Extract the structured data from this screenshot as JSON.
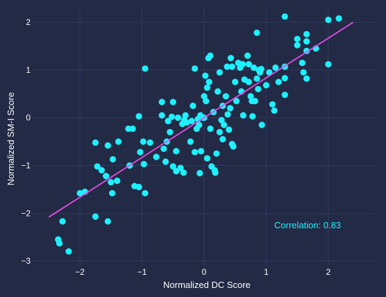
{
  "colors": {
    "background": "#222a45",
    "grid": "#34406a",
    "points": "#1ef0ff",
    "trend_line": "#e84be8",
    "text": "#ffffff",
    "annotation": "#1ef0ff"
  },
  "chart_data": {
    "type": "scatter",
    "title": "",
    "xlabel": "Normalized DC Score",
    "ylabel": "Normalized SM-I Score",
    "xlim": [
      -2.75,
      2.75
    ],
    "ylim": [
      -3.1,
      2.35
    ],
    "xticks": [
      -2,
      -1,
      0,
      1,
      2
    ],
    "yticks": [
      -3,
      -2,
      -1,
      0,
      1,
      2
    ],
    "xtick_labels": [
      "−2",
      "−1",
      "0",
      "1",
      "2"
    ],
    "ytick_labels": [
      "−3",
      "−2",
      "−1",
      "0",
      "1",
      "2"
    ],
    "grid": true,
    "annotation": "Correlation: 0.83",
    "trend_line": {
      "x": [
        -2.5,
        2.4
      ],
      "y": [
        -2.08,
        2.0
      ]
    },
    "points": [
      [
        -2.35,
        -2.55
      ],
      [
        -2.33,
        -2.63
      ],
      [
        -2.28,
        -2.17
      ],
      [
        -2.18,
        -2.8
      ],
      [
        -2.0,
        -1.58
      ],
      [
        -1.92,
        -1.55
      ],
      [
        -1.75,
        -2.07
      ],
      [
        -1.75,
        -0.52
      ],
      [
        -1.72,
        -1.02
      ],
      [
        -1.65,
        -1.1
      ],
      [
        -1.58,
        -1.22
      ],
      [
        -1.55,
        -0.58
      ],
      [
        -1.55,
        -2.17
      ],
      [
        -1.5,
        -1.35
      ],
      [
        -1.48,
        -1.58
      ],
      [
        -1.47,
        -0.87
      ],
      [
        -1.4,
        -1.32
      ],
      [
        -1.38,
        -0.5
      ],
      [
        -1.22,
        -0.23
      ],
      [
        -1.2,
        -1.0
      ],
      [
        -1.15,
        -0.23
      ],
      [
        -1.12,
        -1.43
      ],
      [
        -1.05,
        -1.45
      ],
      [
        -1.05,
        0.03
      ],
      [
        -1.03,
        -0.72
      ],
      [
        -0.98,
        -0.5
      ],
      [
        -0.97,
        -0.97
      ],
      [
        -0.95,
        -1.58
      ],
      [
        -0.95,
        1.03
      ],
      [
        -0.87,
        -0.52
      ],
      [
        -0.77,
        -0.82
      ],
      [
        -0.68,
        0.33
      ],
      [
        -0.68,
        0.05
      ],
      [
        -0.65,
        -0.65
      ],
      [
        -0.62,
        -0.92
      ],
      [
        -0.6,
        -0.5
      ],
      [
        -0.58,
        -0.07
      ],
      [
        -0.55,
        -0.3
      ],
      [
        -0.52,
        0.02
      ],
      [
        -0.5,
        0.33
      ],
      [
        -0.5,
        -1.02
      ],
      [
        -0.45,
        -0.7
      ],
      [
        -0.45,
        -1.12
      ],
      [
        -0.42,
        0.0
      ],
      [
        -0.38,
        -1.05
      ],
      [
        -0.35,
        -0.13
      ],
      [
        -0.33,
        -1.15
      ],
      [
        -0.32,
        -0.05
      ],
      [
        -0.3,
        0.05
      ],
      [
        -0.28,
        -0.1
      ],
      [
        -0.22,
        -0.5
      ],
      [
        -0.2,
        -0.07
      ],
      [
        -0.18,
        0.25
      ],
      [
        -0.15,
        1.03
      ],
      [
        -0.15,
        -0.72
      ],
      [
        -0.12,
        -0.23
      ],
      [
        -0.1,
        -0.03
      ],
      [
        -0.08,
        -0.15
      ],
      [
        -0.07,
        -1.16
      ],
      [
        -0.06,
        0.05
      ],
      [
        -0.05,
        -0.7
      ],
      [
        -0.02,
        0.0
      ],
      [
        0.0,
        0.0
      ],
      [
        0.0,
        0.45
      ],
      [
        0.02,
        0.88
      ],
      [
        0.03,
        0.35
      ],
      [
        0.05,
        0.63
      ],
      [
        0.05,
        -0.85
      ],
      [
        0.07,
        1.25
      ],
      [
        0.08,
        0.75
      ],
      [
        0.1,
        1.3
      ],
      [
        0.1,
        -0.23
      ],
      [
        0.12,
        -1.02
      ],
      [
        0.15,
        0.12
      ],
      [
        0.17,
        -1.1
      ],
      [
        0.18,
        -1.15
      ],
      [
        0.2,
        -0.75
      ],
      [
        0.22,
        0.55
      ],
      [
        0.25,
        0.95
      ],
      [
        0.25,
        -0.3
      ],
      [
        0.28,
        -0.05
      ],
      [
        0.3,
        0.25
      ],
      [
        0.3,
        -0.45
      ],
      [
        0.32,
        -0.15
      ],
      [
        0.35,
        0.45
      ],
      [
        0.37,
        1.07
      ],
      [
        0.38,
        0.07
      ],
      [
        0.4,
        -0.25
      ],
      [
        0.42,
        0.2
      ],
      [
        0.43,
        1.25
      ],
      [
        0.45,
        1.07
      ],
      [
        0.45,
        -0.55
      ],
      [
        0.47,
        -0.6
      ],
      [
        0.5,
        0.75
      ],
      [
        0.52,
        0.35
      ],
      [
        0.55,
        1.15
      ],
      [
        0.58,
        1.05
      ],
      [
        0.6,
        0.55
      ],
      [
        0.62,
        1.12
      ],
      [
        0.63,
        0.05
      ],
      [
        0.65,
        0.8
      ],
      [
        0.7,
        1.3
      ],
      [
        0.72,
        0.75
      ],
      [
        0.72,
        1.12
      ],
      [
        0.75,
        0.45
      ],
      [
        0.77,
        0.35
      ],
      [
        0.78,
        0.03
      ],
      [
        0.8,
        1.05
      ],
      [
        0.82,
        0.35
      ],
      [
        0.85,
        1.78
      ],
      [
        0.85,
        0.82
      ],
      [
        0.87,
        0.6
      ],
      [
        0.88,
        1.0
      ],
      [
        0.9,
        0.95
      ],
      [
        0.92,
        1.02
      ],
      [
        0.93,
        -0.15
      ],
      [
        1.0,
        0.68
      ],
      [
        1.05,
        0.95
      ],
      [
        1.1,
        0.28
      ],
      [
        1.13,
        0.15
      ],
      [
        1.15,
        1.05
      ],
      [
        1.2,
        0.75
      ],
      [
        1.3,
        1.07
      ],
      [
        1.3,
        0.83
      ],
      [
        1.3,
        0.48
      ],
      [
        1.3,
        2.12
      ],
      [
        1.5,
        1.65
      ],
      [
        1.5,
        1.52
      ],
      [
        1.58,
        1.15
      ],
      [
        1.6,
        0.95
      ],
      [
        1.65,
        1.75
      ],
      [
        1.65,
        1.6
      ],
      [
        1.65,
        0.82
      ],
      [
        1.65,
        1.4
      ],
      [
        1.8,
        1.45
      ],
      [
        2.0,
        2.05
      ],
      [
        2.0,
        1.12
      ],
      [
        2.17,
        2.08
      ]
    ]
  }
}
